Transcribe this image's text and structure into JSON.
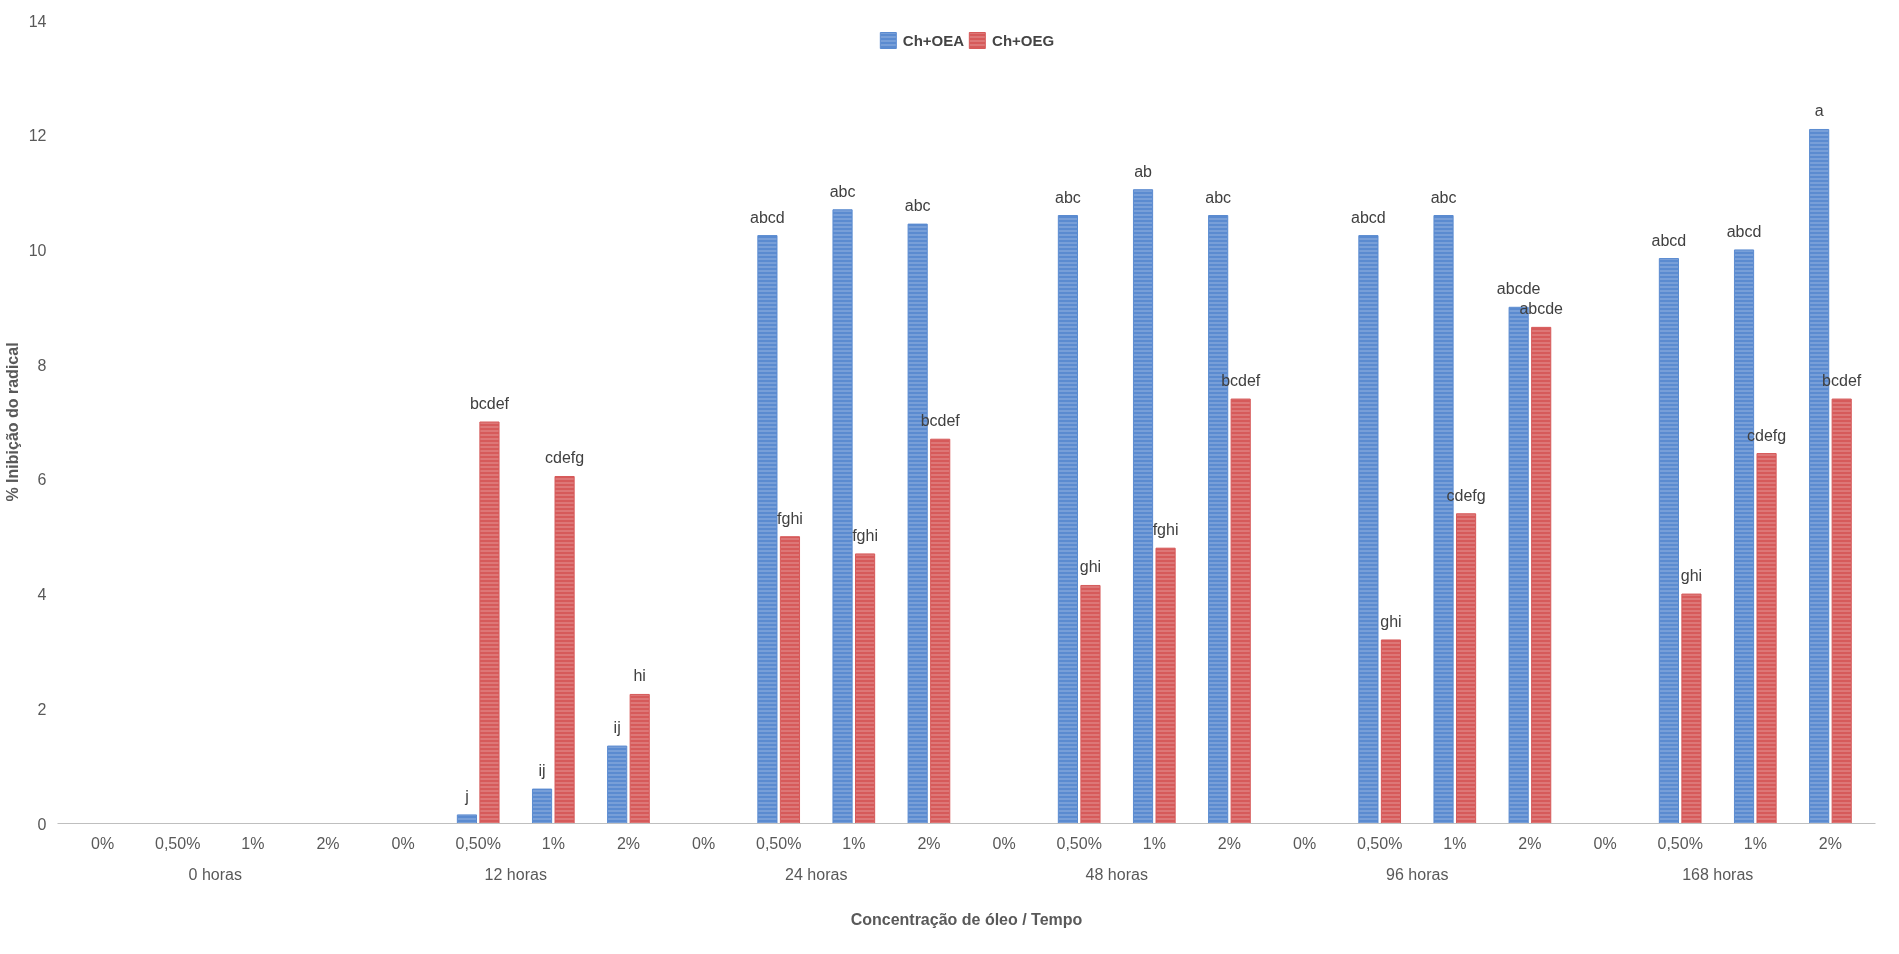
{
  "chart_data": {
    "type": "bar",
    "xlabel": "Concentração de óleo / Tempo",
    "ylabel": "% Inibição do radical",
    "categories": [
      "0%",
      "0,50%",
      "1%",
      "2%",
      "0%",
      "0,50%",
      "1%",
      "2%",
      "0%",
      "0,50%",
      "1%",
      "2%",
      "0%",
      "0,50%",
      "1%",
      "2%",
      "0%",
      "0,50%",
      "1%",
      "2%",
      "0%",
      "0,50%",
      "1%",
      "2%"
    ],
    "annotations": [
      "0 horas",
      "12 horas",
      "24 horas",
      "48 horas",
      "96 horas",
      "168 horas"
    ],
    "series": [
      {
        "name": "Ch+OEA",
        "color": "#5b8bd0",
        "values": [
          0,
          0,
          0,
          0,
          0,
          0.15,
          0.6,
          1.35,
          0,
          10.25,
          10.7,
          10.45,
          0,
          10.6,
          11.05,
          10.6,
          0,
          10.25,
          10.6,
          9.0,
          0,
          9.85,
          10.0,
          12.1
        ],
        "value_labels": [
          null,
          null,
          null,
          null,
          null,
          "j",
          "ij",
          "ij",
          null,
          "abcd",
          "abc",
          "abc",
          null,
          "abc",
          "ab",
          "abc",
          null,
          "abcd",
          "abc",
          "abcde",
          null,
          "abcd",
          "abcd",
          "a"
        ]
      },
      {
        "name": "Ch+OEG",
        "color": "#d65a5a",
        "values": [
          0,
          0,
          0,
          0,
          0,
          7.0,
          6.05,
          2.25,
          0,
          5.0,
          4.7,
          6.7,
          0,
          4.15,
          4.8,
          7.4,
          0,
          3.2,
          5.4,
          8.65,
          0,
          4.0,
          6.45,
          7.4
        ],
        "value_labels": [
          null,
          null,
          null,
          null,
          null,
          "bcdef",
          "cdefg",
          "hi",
          null,
          "fghi",
          "fghi",
          "bcdef",
          null,
          "ghi",
          "fghi",
          "bcdef",
          null,
          "ghi",
          "cdefg",
          "abcde",
          null,
          "ghi",
          "cdefg",
          "bcdef"
        ]
      }
    ],
    "ylim": [
      0,
      14
    ],
    "yticks": [
      0,
      2,
      4,
      6,
      8,
      10,
      12,
      14
    ],
    "grid": false,
    "legend": "top"
  }
}
